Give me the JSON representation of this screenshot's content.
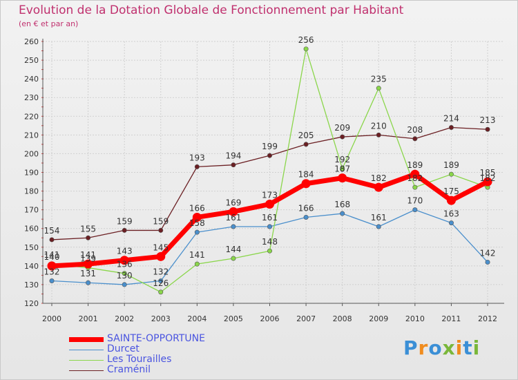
{
  "title": "Evolution de la Dotation Globale de Fonctionnement par Habitant",
  "subtitle": "(en € et par an)",
  "logo": {
    "letters": [
      "P",
      "r",
      "o",
      "x",
      "i",
      "t",
      "i"
    ],
    "colors": [
      "#3b8fd6",
      "#f08c1e",
      "#3b8fd6",
      "#7ab73a",
      "#f08c1e",
      "#3b8fd6",
      "#7ab73a"
    ]
  },
  "chart_data": {
    "type": "line",
    "title": "Evolution de la Dotation Globale de Fonctionnement par Habitant",
    "ylabel": "(en € et par an)",
    "xlabel": "",
    "ylim": [
      120,
      260
    ],
    "yticks": [
      120,
      130,
      140,
      150,
      160,
      170,
      180,
      190,
      200,
      210,
      220,
      230,
      240,
      250,
      260
    ],
    "grid": true,
    "legend": "bottom-left",
    "x": [
      "2000",
      "2001",
      "2002",
      "2003",
      "2004",
      "2005",
      "2006",
      "2007",
      "2008",
      "2009",
      "2010",
      "2011",
      "2012"
    ],
    "series": [
      {
        "name": "Craménil",
        "color": "#6b1f23",
        "values": [
          154,
          155,
          159,
          159,
          193,
          194,
          199,
          205,
          209,
          210,
          208,
          214,
          213
        ]
      },
      {
        "name": "Durcet",
        "color": "#4a8fcc",
        "values": [
          132,
          131,
          130,
          132,
          158,
          161,
          161,
          166,
          168,
          161,
          170,
          163,
          142
        ]
      },
      {
        "name": "Les Tourailles",
        "color": "#8ad64a",
        "values": [
          141,
          139,
          136,
          126,
          141,
          144,
          148,
          256,
          192,
          235,
          182,
          189,
          182
        ]
      },
      {
        "name": "SAINTE-OPPORTUNE",
        "color": "#ff0000",
        "values": [
          140,
          141,
          143,
          145,
          166,
          169,
          173,
          184,
          187,
          182,
          189,
          175,
          185
        ]
      }
    ]
  }
}
